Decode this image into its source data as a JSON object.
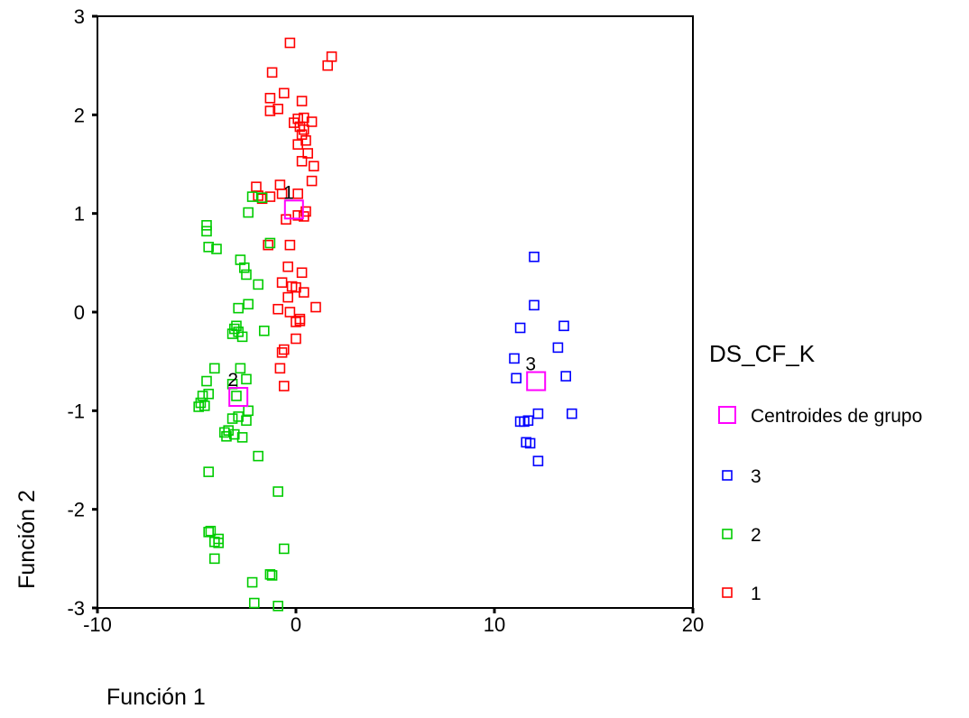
{
  "chart_data": {
    "type": "scatter",
    "title": "",
    "xlabel": "Función 1",
    "ylabel": "Función 2",
    "xlim": [
      -10,
      20
    ],
    "ylim": [
      -3,
      3
    ],
    "x_ticks": [
      -10,
      0,
      10,
      20
    ],
    "y_ticks": [
      -3,
      -2,
      -1,
      0,
      1,
      2,
      3
    ],
    "grid": false,
    "legend": {
      "title": "DS_CF_K",
      "position": "right",
      "entries": [
        {
          "label": "Centroides de grupo",
          "color": "#ff00ff",
          "marker": "large-square"
        },
        {
          "label": "3",
          "color": "#0000ff",
          "marker": "square"
        },
        {
          "label": "2",
          "color": "#00cc00",
          "marker": "square"
        },
        {
          "label": "1",
          "color": "#ff0000",
          "marker": "square"
        }
      ]
    },
    "series": [
      {
        "name": "1",
        "color": "#ff0000",
        "points": [
          [
            -0.3,
            2.73
          ],
          [
            1.8,
            2.59
          ],
          [
            1.6,
            2.5
          ],
          [
            -1.2,
            2.43
          ],
          [
            -0.6,
            2.22
          ],
          [
            -1.3,
            2.17
          ],
          [
            0.3,
            2.14
          ],
          [
            -1.3,
            2.04
          ],
          [
            -0.9,
            2.06
          ],
          [
            0.1,
            1.96
          ],
          [
            0.4,
            1.97
          ],
          [
            0.8,
            1.93
          ],
          [
            -0.1,
            1.92
          ],
          [
            0.2,
            1.88
          ],
          [
            0.4,
            1.85
          ],
          [
            0.3,
            1.8
          ],
          [
            0.5,
            1.74
          ],
          [
            0.1,
            1.7
          ],
          [
            0.6,
            1.61
          ],
          [
            0.3,
            1.53
          ],
          [
            0.9,
            1.48
          ],
          [
            0.8,
            1.33
          ],
          [
            0.1,
            1.2
          ],
          [
            -0.7,
            1.2
          ],
          [
            -2.0,
            1.27
          ],
          [
            -1.9,
            1.18
          ],
          [
            -1.7,
            1.15
          ],
          [
            -1.3,
            1.17
          ],
          [
            -0.8,
            1.29
          ],
          [
            0.5,
            1.02
          ],
          [
            0.1,
            0.98
          ],
          [
            0.4,
            0.97
          ],
          [
            -0.5,
            0.94
          ],
          [
            -0.3,
            0.68
          ],
          [
            -1.4,
            0.68
          ],
          [
            -0.4,
            0.46
          ],
          [
            0.3,
            0.4
          ],
          [
            -0.7,
            0.3
          ],
          [
            -0.2,
            0.26
          ],
          [
            0.0,
            0.25
          ],
          [
            0.4,
            0.2
          ],
          [
            -0.4,
            0.15
          ],
          [
            -0.9,
            0.03
          ],
          [
            -0.3,
            0.0
          ],
          [
            1.0,
            0.05
          ],
          [
            0.2,
            -0.07
          ],
          [
            0.0,
            -0.1
          ],
          [
            0.2,
            -0.09
          ],
          [
            0.0,
            -0.27
          ],
          [
            -0.6,
            -0.38
          ],
          [
            -0.7,
            -0.41
          ],
          [
            -0.8,
            -0.57
          ],
          [
            -0.6,
            -0.75
          ]
        ]
      },
      {
        "name": "2",
        "color": "#00cc00",
        "points": [
          [
            -2.2,
            1.17
          ],
          [
            -1.7,
            1.16
          ],
          [
            -2.4,
            1.01
          ],
          [
            -4.5,
            0.88
          ],
          [
            -4.5,
            0.82
          ],
          [
            -4.4,
            0.66
          ],
          [
            -4.0,
            0.64
          ],
          [
            -1.3,
            0.7
          ],
          [
            -2.8,
            0.53
          ],
          [
            -2.6,
            0.45
          ],
          [
            -2.5,
            0.38
          ],
          [
            -1.9,
            0.28
          ],
          [
            -2.9,
            0.04
          ],
          [
            -2.4,
            0.08
          ],
          [
            -3.0,
            -0.14
          ],
          [
            -3.1,
            -0.17
          ],
          [
            -2.9,
            -0.2
          ],
          [
            -3.2,
            -0.22
          ],
          [
            -2.7,
            -0.25
          ],
          [
            -1.6,
            -0.19
          ],
          [
            -4.1,
            -0.57
          ],
          [
            -2.8,
            -0.57
          ],
          [
            -2.5,
            -0.68
          ],
          [
            -4.5,
            -0.7
          ],
          [
            -3.2,
            -0.73
          ],
          [
            -4.4,
            -0.83
          ],
          [
            -4.7,
            -0.85
          ],
          [
            -3.0,
            -0.85
          ],
          [
            -4.8,
            -0.92
          ],
          [
            -4.9,
            -0.96
          ],
          [
            -4.6,
            -0.95
          ],
          [
            -2.4,
            -1.0
          ],
          [
            -2.9,
            -1.06
          ],
          [
            -3.2,
            -1.08
          ],
          [
            -2.5,
            -1.1
          ],
          [
            -3.4,
            -1.2
          ],
          [
            -3.1,
            -1.24
          ],
          [
            -3.6,
            -1.22
          ],
          [
            -3.5,
            -1.26
          ],
          [
            -2.7,
            -1.27
          ],
          [
            -1.9,
            -1.46
          ],
          [
            -4.4,
            -1.62
          ],
          [
            -0.9,
            -1.82
          ],
          [
            -4.3,
            -2.22
          ],
          [
            -4.4,
            -2.23
          ],
          [
            -3.9,
            -2.3
          ],
          [
            -4.1,
            -2.33
          ],
          [
            -3.9,
            -2.34
          ],
          [
            -4.1,
            -2.5
          ],
          [
            -0.6,
            -2.4
          ],
          [
            -1.3,
            -2.66
          ],
          [
            -1.2,
            -2.67
          ],
          [
            -2.2,
            -2.74
          ],
          [
            -2.1,
            -2.95
          ],
          [
            -0.9,
            -2.98
          ]
        ]
      },
      {
        "name": "3",
        "color": "#0000ff",
        "points": [
          [
            12.0,
            0.56
          ],
          [
            12.0,
            0.07
          ],
          [
            11.3,
            -0.16
          ],
          [
            13.5,
            -0.14
          ],
          [
            13.2,
            -0.36
          ],
          [
            11.0,
            -0.47
          ],
          [
            11.1,
            -0.67
          ],
          [
            13.6,
            -0.65
          ],
          [
            12.2,
            -1.03
          ],
          [
            13.9,
            -1.03
          ],
          [
            11.3,
            -1.11
          ],
          [
            11.5,
            -1.11
          ],
          [
            11.7,
            -1.1
          ],
          [
            11.6,
            -1.32
          ],
          [
            11.8,
            -1.33
          ],
          [
            12.2,
            -1.51
          ]
        ]
      }
    ],
    "centroids": [
      {
        "label": "1",
        "x": -0.1,
        "y": 1.04
      },
      {
        "label": "2",
        "x": -2.9,
        "y": -0.86
      },
      {
        "label": "3",
        "x": 12.1,
        "y": -0.7
      }
    ]
  }
}
